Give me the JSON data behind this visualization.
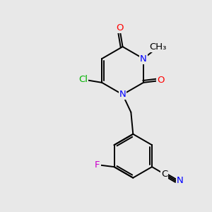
{
  "background_color": "#e8e8e8",
  "bond_color": "#000000",
  "atom_colors": {
    "N": "#0000ff",
    "O": "#ff0000",
    "Cl": "#00b300",
    "F": "#cc00cc",
    "N_nitrile": "#0000ff"
  },
  "figsize": [
    3.0,
    3.0
  ],
  "dpi": 100
}
